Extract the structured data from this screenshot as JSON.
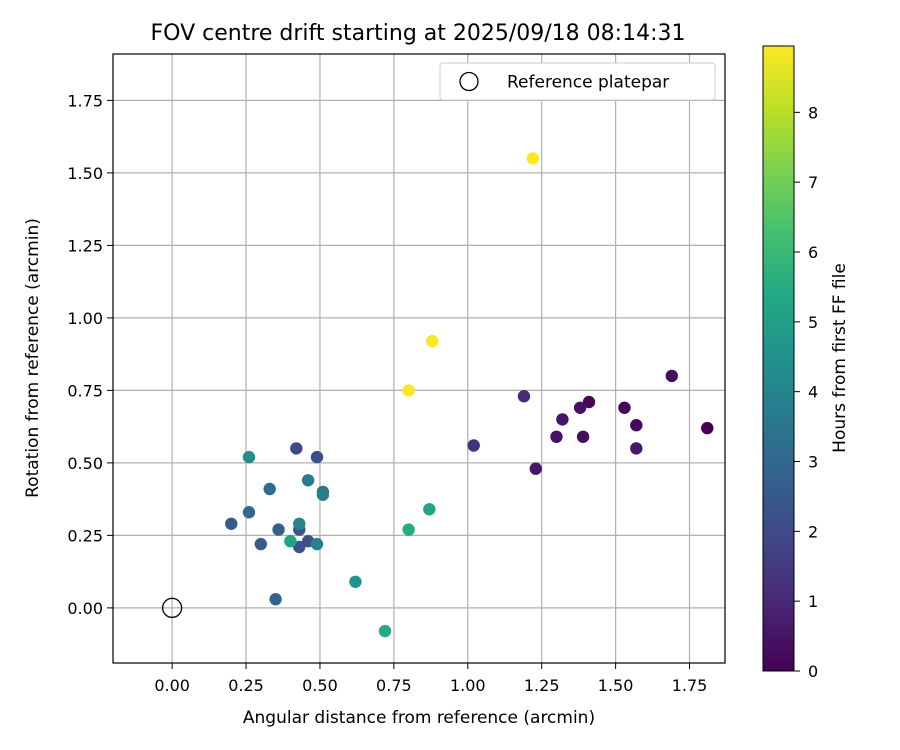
{
  "chart_data": {
    "type": "scatter",
    "title": "FOV centre drift starting at 2025/09/18 08:14:31",
    "xlabel": "Angular distance from reference (arcmin)",
    "ylabel": "Rotation from reference (arcmin)",
    "xlim": [
      -0.2,
      1.87
    ],
    "ylim": [
      -0.19,
      1.91
    ],
    "xticks": [
      "0.00",
      "0.25",
      "0.50",
      "0.75",
      "1.00",
      "1.25",
      "1.50",
      "1.75"
    ],
    "yticks": [
      "0.00",
      "0.25",
      "0.50",
      "0.75",
      "1.00",
      "1.25",
      "1.50",
      "1.75"
    ],
    "grid": true,
    "legend": {
      "placement": "top-right",
      "entries": [
        "Reference platepar"
      ]
    },
    "reference_point": {
      "x": 0.0,
      "y": 0.0,
      "label": "Reference platepar"
    },
    "colorbar": {
      "label": "Hours from first FF file",
      "colormap": "viridis",
      "range": [
        0,
        8.95
      ],
      "ticks": [
        "0",
        "1",
        "2",
        "3",
        "4",
        "5",
        "6",
        "7",
        "8"
      ]
    },
    "points": [
      {
        "x": 1.81,
        "y": 0.62,
        "c": 0.0
      },
      {
        "x": 1.69,
        "y": 0.8,
        "c": 0.3
      },
      {
        "x": 1.57,
        "y": 0.63,
        "c": 0.2
      },
      {
        "x": 1.57,
        "y": 0.55,
        "c": 0.6
      },
      {
        "x": 1.53,
        "y": 0.69,
        "c": 0.1
      },
      {
        "x": 1.41,
        "y": 0.71,
        "c": 0.2
      },
      {
        "x": 1.38,
        "y": 0.69,
        "c": 0.4
      },
      {
        "x": 1.39,
        "y": 0.59,
        "c": 0.3
      },
      {
        "x": 1.32,
        "y": 0.65,
        "c": 0.5
      },
      {
        "x": 1.3,
        "y": 0.59,
        "c": 0.4
      },
      {
        "x": 1.23,
        "y": 0.48,
        "c": 0.6
      },
      {
        "x": 1.19,
        "y": 0.73,
        "c": 1.1
      },
      {
        "x": 1.02,
        "y": 0.56,
        "c": 1.3
      },
      {
        "x": 0.42,
        "y": 0.55,
        "c": 2.0
      },
      {
        "x": 0.49,
        "y": 0.52,
        "c": 2.1
      },
      {
        "x": 0.46,
        "y": 0.23,
        "c": 2.2
      },
      {
        "x": 0.43,
        "y": 0.21,
        "c": 2.3
      },
      {
        "x": 0.43,
        "y": 0.27,
        "c": 2.4
      },
      {
        "x": 0.2,
        "y": 0.29,
        "c": 2.5
      },
      {
        "x": 0.3,
        "y": 0.22,
        "c": 2.6
      },
      {
        "x": 0.36,
        "y": 0.27,
        "c": 2.7
      },
      {
        "x": 0.35,
        "y": 0.03,
        "c": 2.9
      },
      {
        "x": 0.26,
        "y": 0.33,
        "c": 3.0
      },
      {
        "x": 0.33,
        "y": 0.41,
        "c": 3.2
      },
      {
        "x": 0.51,
        "y": 0.4,
        "c": 3.5
      },
      {
        "x": 0.46,
        "y": 0.44,
        "c": 3.7
      },
      {
        "x": 0.51,
        "y": 0.39,
        "c": 3.8
      },
      {
        "x": 0.49,
        "y": 0.22,
        "c": 3.9
      },
      {
        "x": 0.43,
        "y": 0.29,
        "c": 4.0
      },
      {
        "x": 0.26,
        "y": 0.52,
        "c": 4.3
      },
      {
        "x": 0.62,
        "y": 0.09,
        "c": 4.5
      },
      {
        "x": 0.4,
        "y": 0.23,
        "c": 5.1
      },
      {
        "x": 0.87,
        "y": 0.34,
        "c": 5.3
      },
      {
        "x": 0.8,
        "y": 0.27,
        "c": 5.5
      },
      {
        "x": 0.72,
        "y": -0.08,
        "c": 5.4
      },
      {
        "x": 0.8,
        "y": 0.75,
        "c": 8.9
      },
      {
        "x": 0.88,
        "y": 0.92,
        "c": 8.9
      },
      {
        "x": 1.22,
        "y": 1.55,
        "c": 8.95
      }
    ]
  }
}
